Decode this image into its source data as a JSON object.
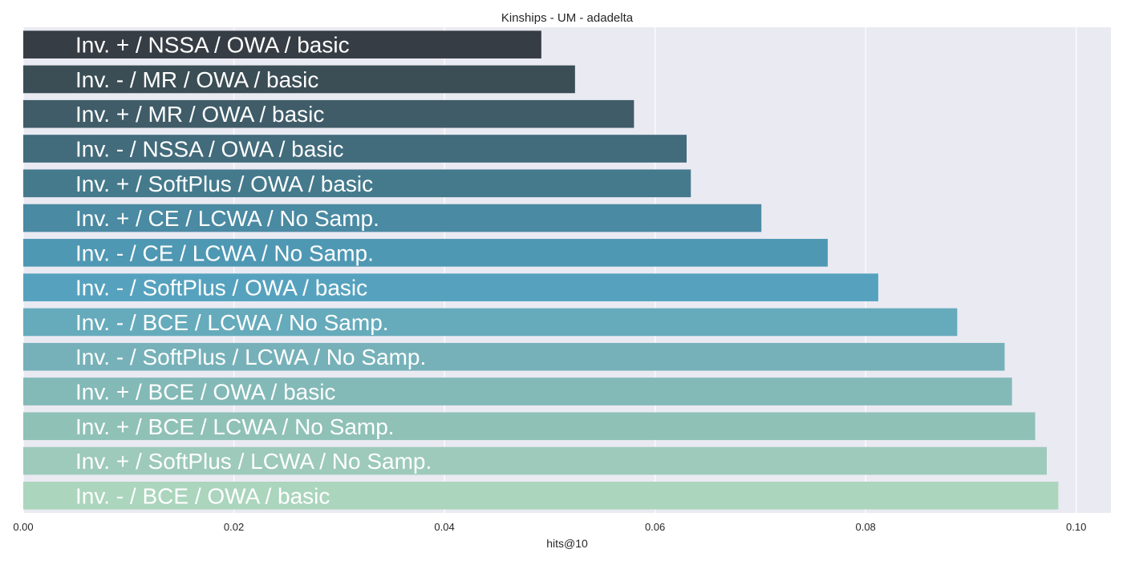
{
  "chart_data": {
    "type": "bar",
    "orientation": "horizontal",
    "title": "Kinships - UM - adadelta",
    "xlabel": "hits@10",
    "ylabel": "",
    "xlim": [
      0.0,
      0.1033
    ],
    "xticks": [
      "0.00",
      "0.02",
      "0.04",
      "0.06",
      "0.08",
      "0.10"
    ],
    "grid": true,
    "categories": [
      "Inv. + / NSSA / OWA / basic",
      "Inv. - / MR / OWA / basic",
      "Inv. + / MR / OWA / basic",
      "Inv. - / NSSA / OWA / basic",
      "Inv. + / SoftPlus / OWA / basic",
      "Inv. + / CE / LCWA / No Samp.",
      "Inv. - / CE / LCWA / No Samp.",
      "Inv. - / SoftPlus / OWA / basic",
      "Inv. - / BCE / LCWA / No Samp.",
      "Inv. - / SoftPlus / LCWA / No Samp.",
      "Inv. + / BCE / OWA / basic",
      "Inv. + / BCE / LCWA / No Samp.",
      "Inv. + / SoftPlus / LCWA / No Samp.",
      "Inv. - / BCE / OWA / basic"
    ],
    "values": [
      0.0492,
      0.0524,
      0.058,
      0.063,
      0.0634,
      0.0701,
      0.0764,
      0.0812,
      0.0887,
      0.0932,
      0.0939,
      0.0961,
      0.0972,
      0.0983
    ],
    "colors": [
      "#373d44",
      "#3b4d55",
      "#3f5c68",
      "#426b7b",
      "#457a8c",
      "#4a8aa2",
      "#4f98b4",
      "#56a2be",
      "#66abbc",
      "#76b1b9",
      "#83b9b7",
      "#8fc1b7",
      "#9dcaba",
      "#abd5bd"
    ],
    "background": "#eaeaf2"
  }
}
